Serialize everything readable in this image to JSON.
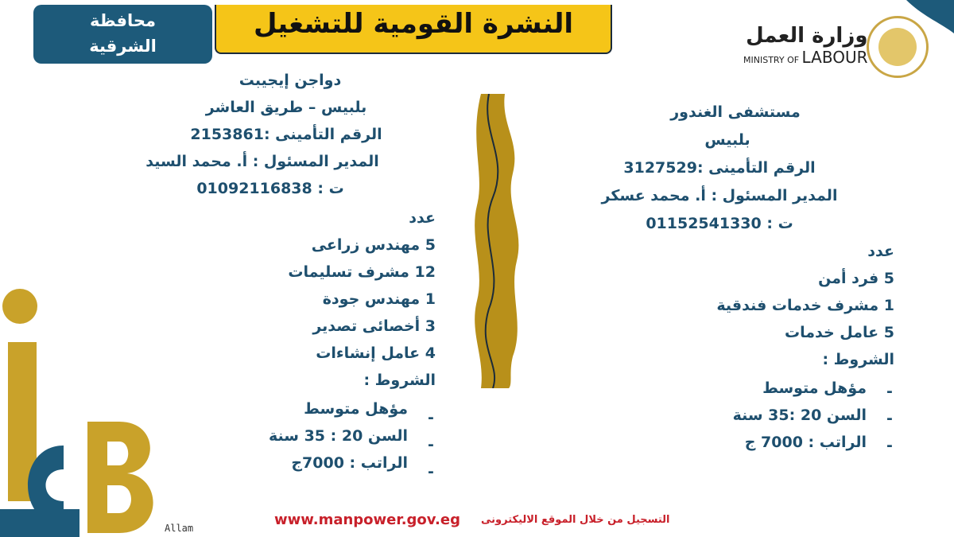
{
  "header": {
    "governorate": [
      "محافظة",
      "الشرقية"
    ],
    "title": "النشرة القومية للتشغيل",
    "ministry_ar": "وزارة العمل",
    "ministry_en_1": "MINISTRY OF ",
    "ministry_en_2": "LABOUR"
  },
  "colors": {
    "primary": "#1d5a7a",
    "accent": "#f5c518",
    "gold": "#b8901a",
    "footer": "#c8202a"
  },
  "left": {
    "company": "دواجن إيجيبت",
    "location": "بلبيس – طريق العاشر",
    "insurance": "الرقم التأمينى :2153861",
    "manager": "المدير المسئول : أ. محمد السيد",
    "phone": "ت : 01092116838",
    "count_label": "عدد",
    "jobs": [
      "5 مهندس زراعى",
      "12 مشرف تسليمات",
      "1 مهندس جودة",
      "3 أخصائى تصدير",
      "4 عامل إنشاءات"
    ],
    "conditions_label": "الشروط :",
    "conditions": [
      "مؤهل متوسط",
      "السن 20 : 35   سنة",
      "الراتب : 7000ج"
    ]
  },
  "right": {
    "company": "مستشفى الغندور",
    "location": "بلبيس",
    "insurance": "الرقم التأمينى :3127529",
    "manager": "المدير المسئول : أ. محمد عسكر",
    "phone": "ت : 01152541330",
    "count_label": "عدد",
    "jobs": [
      "5 فرد أمن",
      "1 مشرف خدمات فندقية",
      "5 عامل خدمات"
    ],
    "conditions_label": "الشروط :",
    "conditions": [
      "مؤهل متوسط",
      "السن 20  :35  سنة",
      "الراتب : 7000 ج"
    ]
  },
  "footer": {
    "url": "www.manpower.gov.eg",
    "text": "التسجيل من خلال الموقع الاليكترونى",
    "signature": "Allam"
  }
}
